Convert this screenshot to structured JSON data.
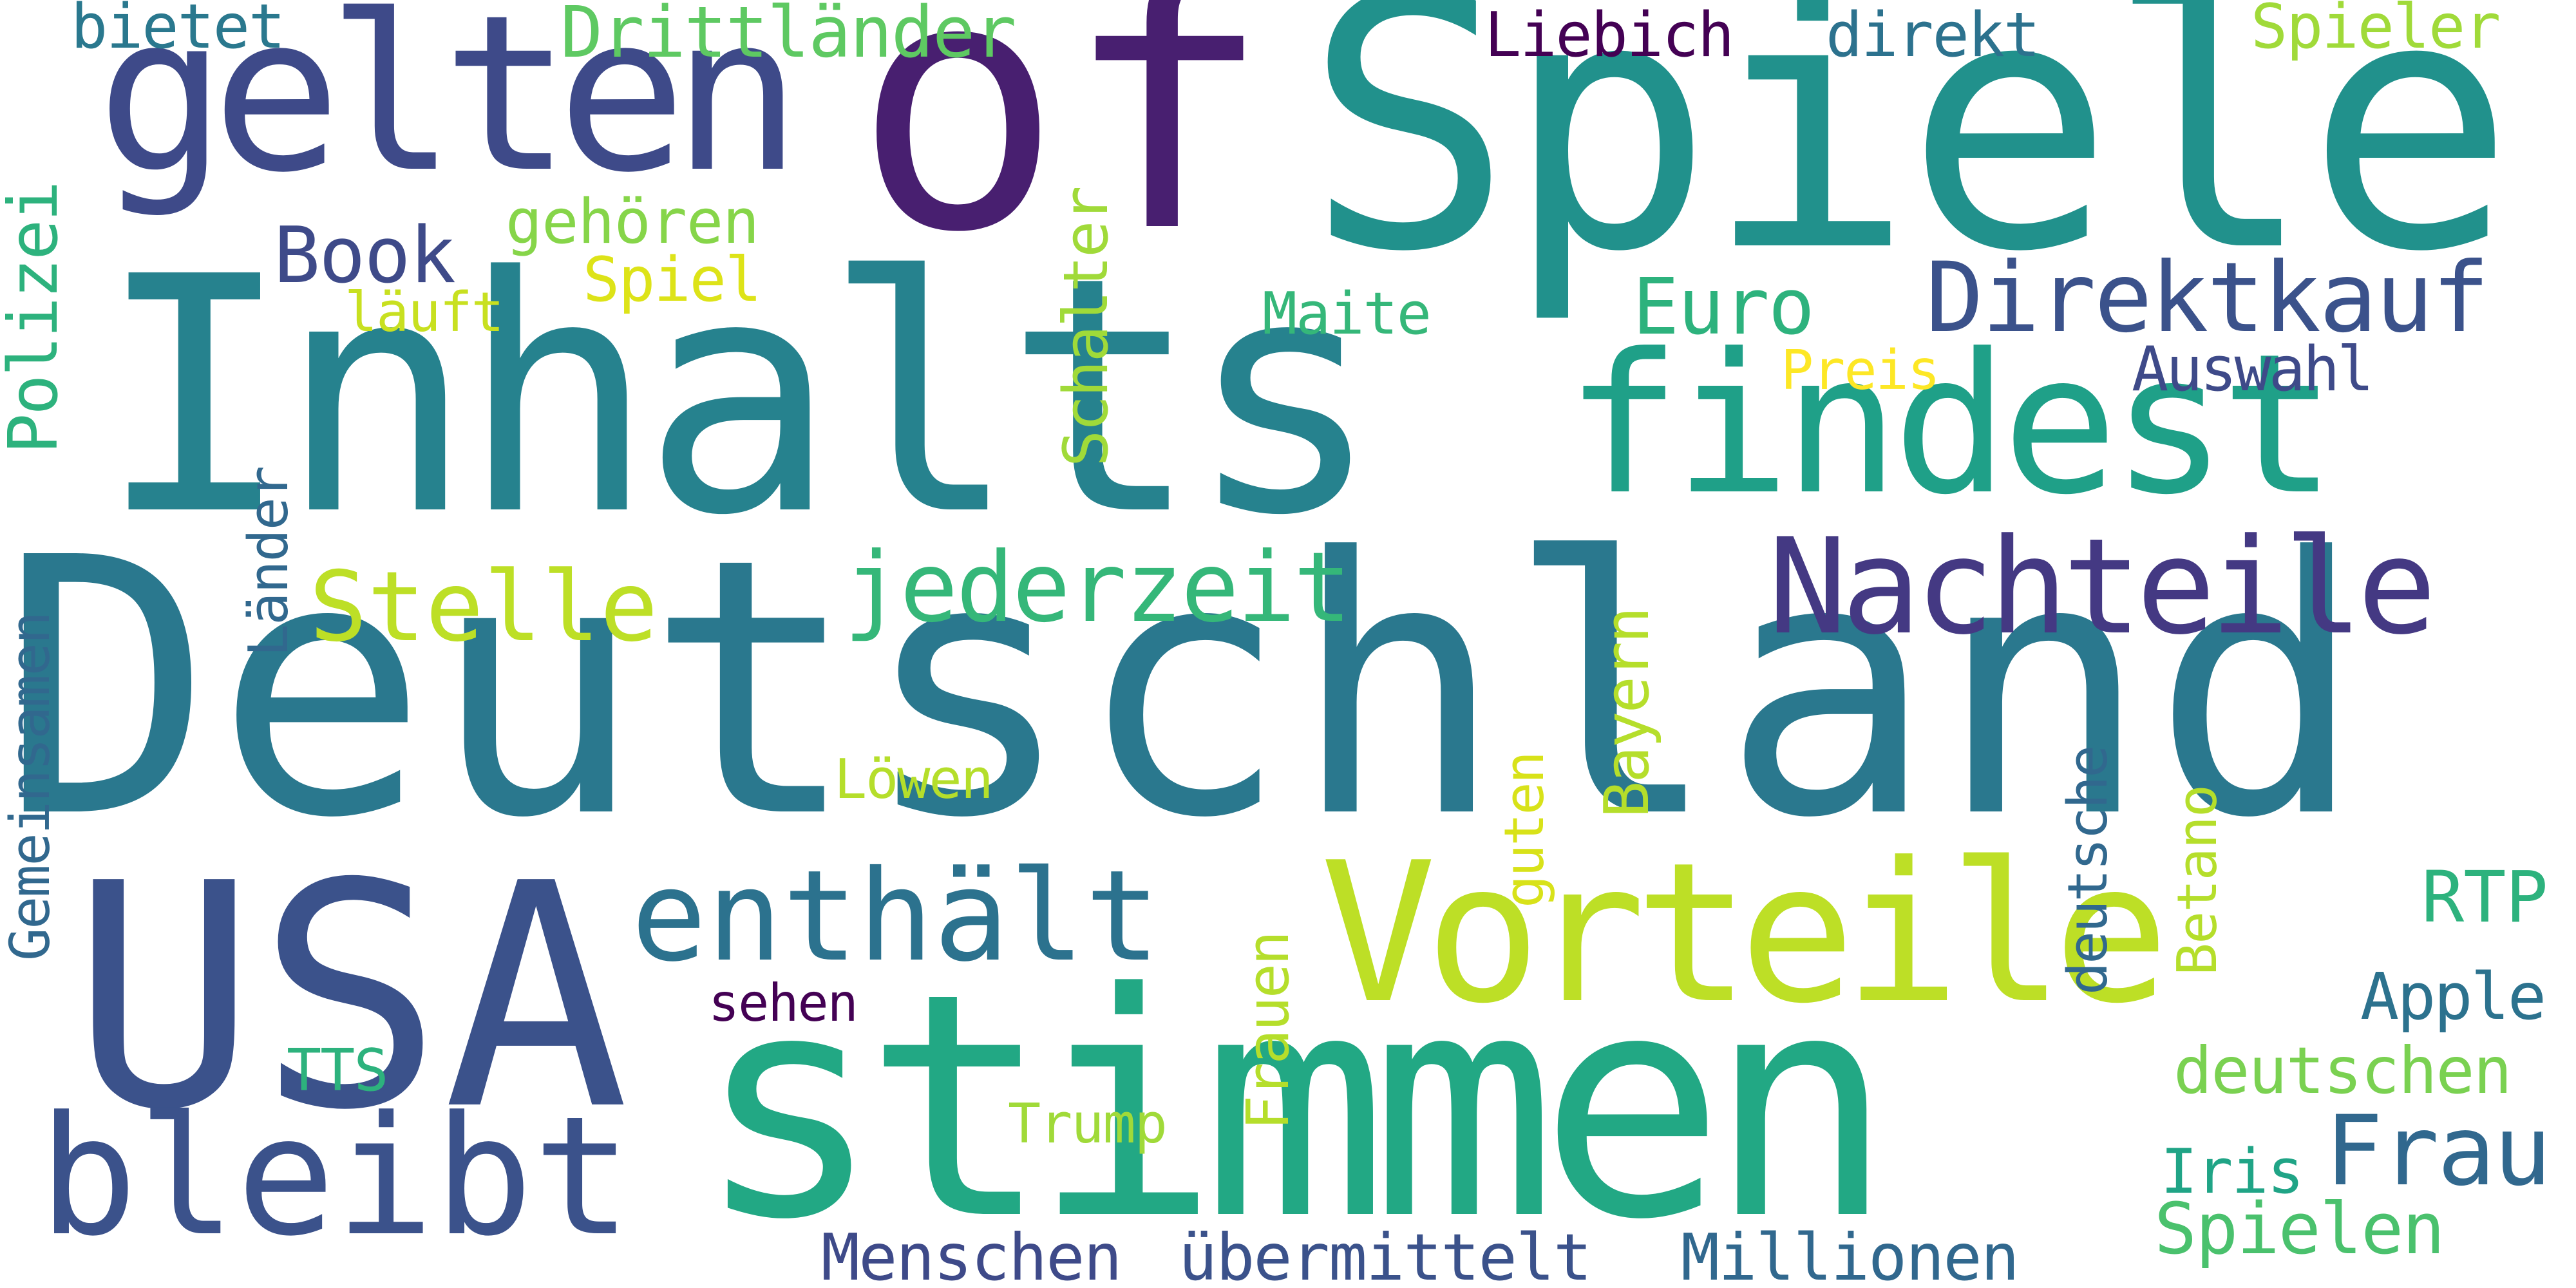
{
  "words": [
    {
      "text": "Deutschland",
      "color": "#2a788e"
    },
    {
      "text": "Inhalts",
      "color": "#26828e"
    },
    {
      "text": "Spiele",
      "color": "#21918c"
    },
    {
      "text": "stimmen",
      "color": "#22a884"
    },
    {
      "text": "USA",
      "color": "#3b528b"
    },
    {
      "text": "of",
      "color": "#481f70"
    },
    {
      "text": "findest",
      "color": "#1fa088"
    },
    {
      "text": "gelten",
      "color": "#3e4a89"
    },
    {
      "text": "Vorteile",
      "color": "#bddf26"
    },
    {
      "text": "Nachteile",
      "color": "#443983"
    },
    {
      "text": "bleibt",
      "color": "#3b528b"
    },
    {
      "text": "enthält",
      "color": "#2c728e"
    },
    {
      "text": "jederzeit",
      "color": "#35b779"
    },
    {
      "text": "Direktkauf",
      "color": "#3b528b"
    },
    {
      "text": "Stelle",
      "color": "#bddf26"
    },
    {
      "text": "Frau",
      "color": "#31688e"
    },
    {
      "text": "Spielen",
      "color": "#4ac16d"
    },
    {
      "text": "Book",
      "color": "#3e4a89"
    },
    {
      "text": "Euro",
      "color": "#2db27d"
    },
    {
      "text": "RTP",
      "color": "#2db27d"
    },
    {
      "text": "Drittländer",
      "color": "#5ec962"
    },
    {
      "text": "Menschen",
      "color": "#3e4a89"
    },
    {
      "text": "übermittelt",
      "color": "#3b528b"
    },
    {
      "text": "Millionen",
      "color": "#31688e"
    },
    {
      "text": "deutschen",
      "color": "#7ad151"
    },
    {
      "text": "Apple",
      "color": "#2c728e"
    },
    {
      "text": "Auswahl",
      "color": "#3e4a89"
    },
    {
      "text": "gehören",
      "color": "#86d549"
    },
    {
      "text": "bietet",
      "color": "#2a788e"
    },
    {
      "text": "direkt",
      "color": "#2c728e"
    },
    {
      "text": "Liebich",
      "color": "#440154"
    },
    {
      "text": "Spieler",
      "color": "#a0da39"
    },
    {
      "text": "Spiel",
      "color": "#dde318"
    },
    {
      "text": "läuft",
      "color": "#c8e020"
    },
    {
      "text": "Maite",
      "color": "#35b779"
    },
    {
      "text": "Preis",
      "color": "#fde725"
    },
    {
      "text": "Löwen",
      "color": "#b5de2b"
    },
    {
      "text": "sehen",
      "color": "#440154"
    },
    {
      "text": "TTS",
      "color": "#2db27d"
    },
    {
      "text": "Trump",
      "color": "#a0da39"
    },
    {
      "text": "Iris",
      "color": "#20a486"
    },
    {
      "text": "Polizei",
      "color": "#2db27d"
    },
    {
      "text": "Gemeinsamen",
      "color": "#31688e"
    },
    {
      "text": "Länder",
      "color": "#31688e"
    },
    {
      "text": "Schalter",
      "color": "#a0da39"
    },
    {
      "text": "Bayern",
      "color": "#b5de2b"
    },
    {
      "text": "guten",
      "color": "#d8e219"
    },
    {
      "text": "Frauen",
      "color": "#b5de2b"
    },
    {
      "text": "deutsche",
      "color": "#31688e"
    },
    {
      "text": "Betano",
      "color": "#b5de2b"
    }
  ]
}
